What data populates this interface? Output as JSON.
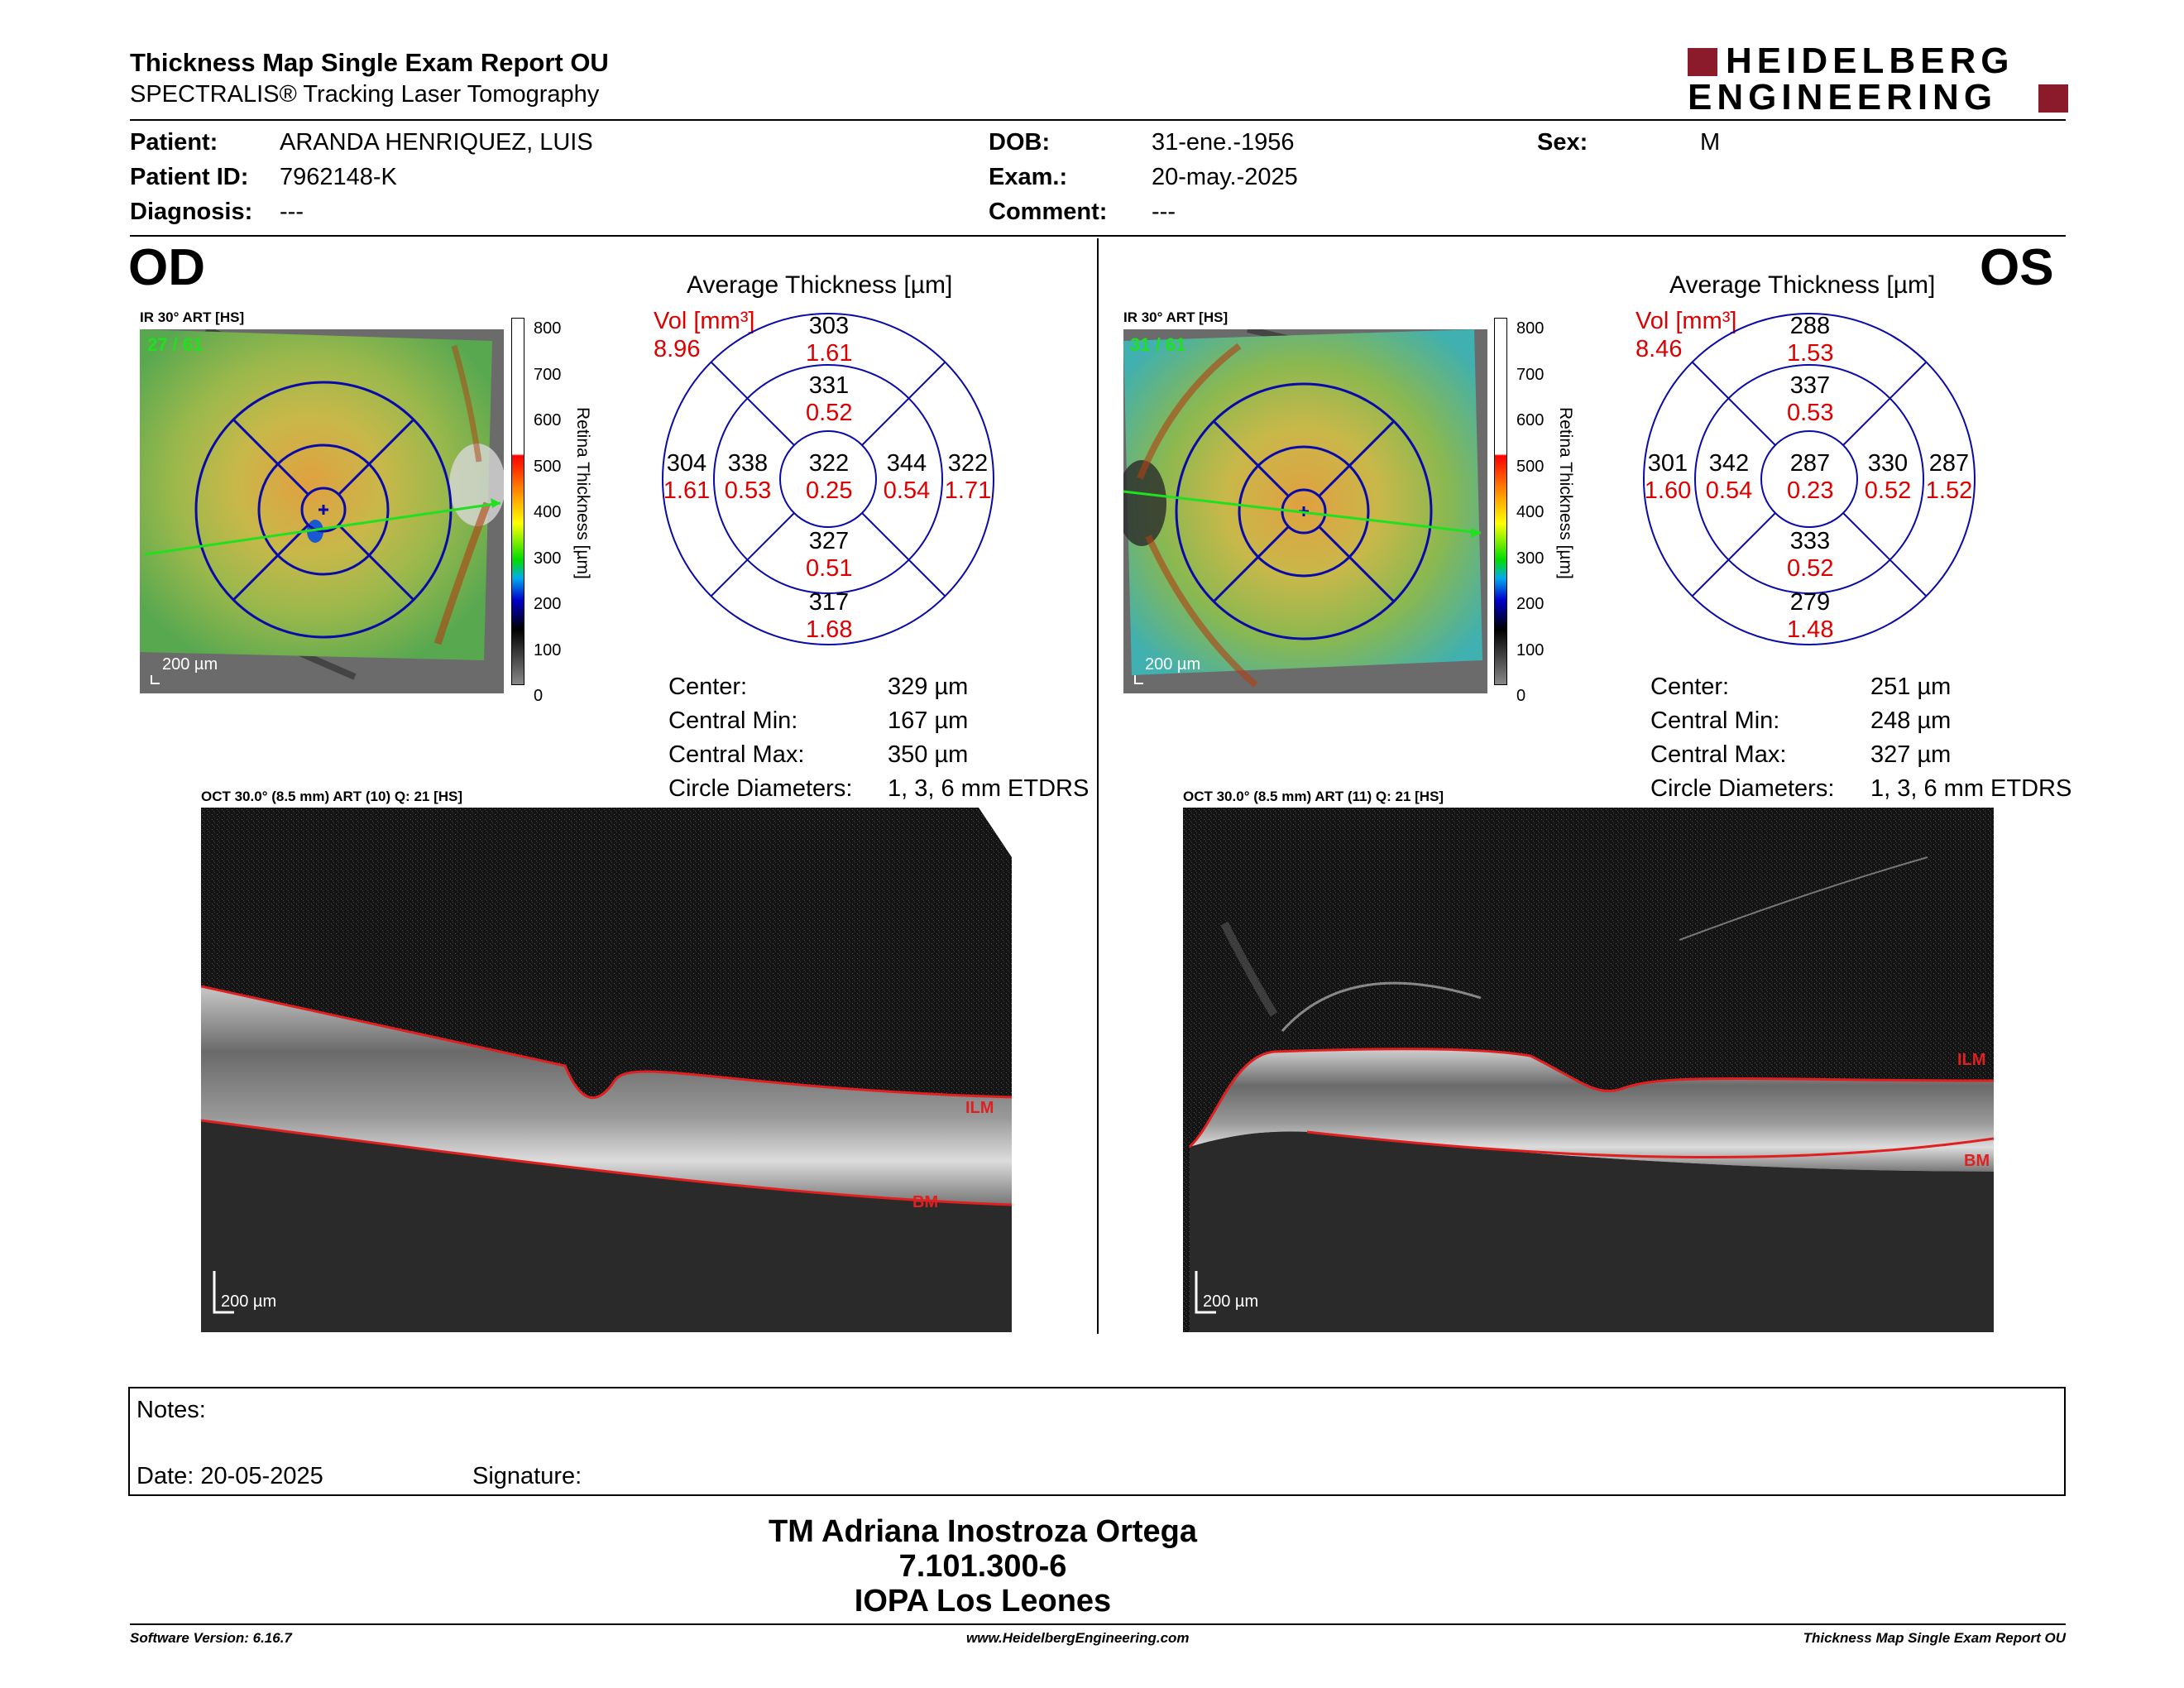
{
  "header": {
    "title": "Thickness Map Single Exam Report OU",
    "subtitle": "SPECTRALIS® Tracking Laser Tomography",
    "logo_line1": "HEIDELBERG",
    "logo_line2": "ENGINEERING"
  },
  "patient": {
    "patient_label": "Patient:",
    "patient_value": "ARANDA HENRIQUEZ, LUIS",
    "id_label": "Patient ID:",
    "id_value": "7962148-K",
    "diag_label": "Diagnosis:",
    "diag_value": "---",
    "dob_label": "DOB:",
    "dob_value": "31-ene.-1956",
    "exam_label": "Exam.:",
    "exam_value": "20-may.-2025",
    "comment_label": "Comment:",
    "comment_value": "---",
    "sex_label": "Sex:",
    "sex_value": "M"
  },
  "od": {
    "eye": "OD",
    "fundus_label": "IR 30° ART [HS]",
    "frame": "27 / 61",
    "scale": "200 µm",
    "avg_title": "Average Thickness [µm]",
    "vol_label": "Vol [mm³]",
    "vol_total": "8.96",
    "sectors": {
      "c": [
        "322",
        "0.25"
      ],
      "in": [
        "331",
        "0.52"
      ],
      "ii": [
        "327",
        "0.51"
      ],
      "it": [
        "338",
        "0.53"
      ],
      "inn": [
        "344",
        "0.54"
      ],
      "on": [
        "303",
        "1.61"
      ],
      "oi": [
        "317",
        "1.68"
      ],
      "ot": [
        "304",
        "1.61"
      ],
      "onn": [
        "322",
        "1.71"
      ]
    },
    "stats": [
      {
        "label": "Center:",
        "value": "329 µm"
      },
      {
        "label": "Central Min:",
        "value": "167 µm"
      },
      {
        "label": "Central Max:",
        "value": "350 µm"
      },
      {
        "label": "Circle Diameters:",
        "value": "1, 3, 6 mm ETDRS"
      }
    ],
    "oct_label": "OCT 30.0° (8.5 mm) ART (10) Q: 21 [HS]",
    "ilm": "ILM",
    "bm": "BM",
    "oct_scale": "200 µm"
  },
  "os": {
    "eye": "OS",
    "fundus_label": "IR 30° ART [HS]",
    "frame": "31 / 61",
    "scale": "200 µm",
    "avg_title": "Average Thickness [µm]",
    "vol_label": "Vol [mm³]",
    "vol_total": "8.46",
    "sectors": {
      "c": [
        "287",
        "0.23"
      ],
      "in": [
        "337",
        "0.53"
      ],
      "ii": [
        "333",
        "0.52"
      ],
      "it": [
        "342",
        "0.54"
      ],
      "inn": [
        "330",
        "0.52"
      ],
      "on": [
        "288",
        "1.53"
      ],
      "oi": [
        "279",
        "1.48"
      ],
      "ot": [
        "301",
        "1.60"
      ],
      "onn": [
        "287",
        "1.52"
      ]
    },
    "stats": [
      {
        "label": "Center:",
        "value": "251 µm"
      },
      {
        "label": "Central Min:",
        "value": "248 µm"
      },
      {
        "label": "Central Max:",
        "value": "327 µm"
      },
      {
        "label": "Circle Diameters:",
        "value": "1, 3, 6 mm ETDRS"
      }
    ],
    "oct_label": "OCT 30.0° (8.5 mm) ART (11) Q: 21 [HS]",
    "ilm": "ILM",
    "bm": "BM",
    "oct_scale": "200 µm"
  },
  "colorbar": {
    "ticks": [
      "800",
      "700",
      "600",
      "500",
      "400",
      "300",
      "200",
      "100",
      "0"
    ],
    "label": "Retina  Thickness [µm]"
  },
  "notes": {
    "notes_label": "Notes:",
    "date_label": "Date: 20-05-2025",
    "signature_label": "Signature:"
  },
  "signatory": {
    "name": "TM Adriana Inostroza Ortega",
    "rut": "7.101.300-6",
    "institution": "IOPA Los Leones"
  },
  "footer": {
    "software": "Software Version: 6.16.7",
    "website": "www.HeidelbergEngineering.com",
    "report": "Thickness Map Single Exam Report OU"
  }
}
